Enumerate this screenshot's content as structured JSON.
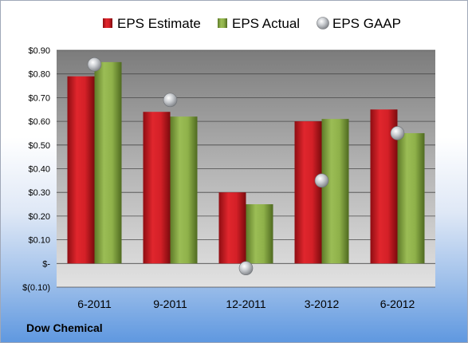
{
  "company": "Dow Chemical",
  "colors": {
    "estimate": "#d42027",
    "actual": "#8fb14a",
    "gaap": "#a9acb0"
  },
  "chart_data": {
    "type": "bar",
    "categories": [
      "6-2011",
      "9-2011",
      "12-2011",
      "3-2012",
      "6-2012"
    ],
    "series": [
      {
        "name": "EPS Estimate",
        "kind": "bar",
        "values": [
          0.79,
          0.64,
          0.3,
          0.6,
          0.65
        ]
      },
      {
        "name": "EPS Actual",
        "kind": "bar",
        "values": [
          0.85,
          0.62,
          0.25,
          0.61,
          0.55
        ]
      },
      {
        "name": "EPS GAAP",
        "kind": "scatter",
        "values": [
          0.84,
          0.69,
          -0.02,
          0.35,
          0.55
        ]
      }
    ],
    "ylim": [
      -0.1,
      0.9
    ],
    "yticks": [
      -0.1,
      0.0,
      0.1,
      0.2,
      0.3,
      0.4,
      0.5,
      0.6,
      0.7,
      0.8,
      0.9
    ],
    "ytick_labels": [
      "$(0.10)",
      "$-",
      "$0.10",
      "$0.20",
      "$0.30",
      "$0.40",
      "$0.50",
      "$0.60",
      "$0.70",
      "$0.80",
      "$0.90"
    ],
    "grid": true,
    "legend": "top"
  }
}
